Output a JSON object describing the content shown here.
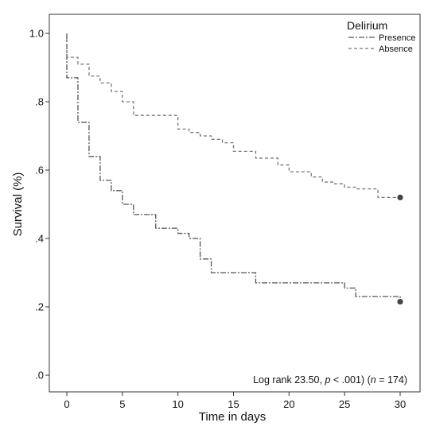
{
  "chart_data": {
    "type": "line",
    "step": true,
    "xlabel": "Time in days",
    "ylabel": "Survival (%)",
    "xlim": [
      0,
      30
    ],
    "ylim": [
      0,
      1
    ],
    "x_ticks": [
      0,
      5,
      10,
      15,
      20,
      25,
      30
    ],
    "x_tick_labels": [
      "0",
      "5",
      "10",
      "15",
      "20",
      "25",
      "30"
    ],
    "y_ticks": [
      0,
      0.2,
      0.4,
      0.6,
      0.8,
      1.0
    ],
    "y_tick_labels": [
      ".0",
      ".2",
      ".4",
      ".6",
      ".8",
      "1.0"
    ],
    "grid": false,
    "legend": {
      "title": "Delirium",
      "placement": "top-right",
      "entries": [
        "Presence",
        "Absence"
      ]
    },
    "annotation": {
      "prefix": "Log rank 23.50, ",
      "p": "p",
      "middle": " < .001) (",
      "n": "n",
      "suffix": " = 174"
    },
    "series": [
      {
        "name": "Presence",
        "color": "#555555",
        "dash": "7 2 2 2",
        "x": [
          0,
          1,
          2,
          3,
          4,
          5,
          6,
          8,
          10,
          11,
          12,
          13,
          17,
          21,
          23,
          25,
          26,
          30
        ],
        "y": [
          0.87,
          0.74,
          0.64,
          0.57,
          0.54,
          0.5,
          0.47,
          0.43,
          0.415,
          0.4,
          0.34,
          0.3,
          0.27,
          0.27,
          0.27,
          0.255,
          0.23,
          0.215
        ]
      },
      {
        "name": "Absence",
        "color": "#777777",
        "dash": "4 3",
        "x": [
          0,
          1,
          2,
          3,
          4,
          5,
          6,
          10,
          11,
          12,
          13,
          14,
          15,
          17,
          19,
          20,
          22,
          23,
          24,
          25,
          26,
          28,
          29,
          30
        ],
        "y": [
          0.93,
          0.91,
          0.875,
          0.855,
          0.83,
          0.8,
          0.76,
          0.72,
          0.71,
          0.7,
          0.69,
          0.68,
          0.655,
          0.635,
          0.615,
          0.595,
          0.58,
          0.565,
          0.56,
          0.55,
          0.545,
          0.52,
          0.52,
          0.52
        ]
      }
    ]
  }
}
